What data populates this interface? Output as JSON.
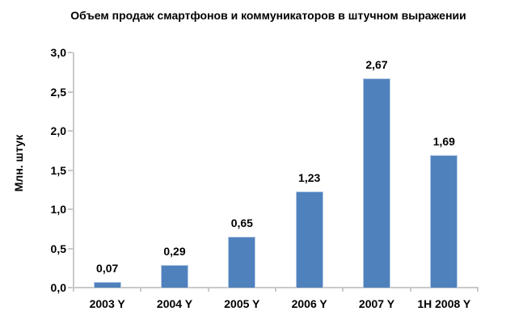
{
  "chart_data": {
    "type": "bar",
    "title": "Объем продаж смартфонов и коммуникаторов в штучном выражении",
    "xlabel": "",
    "ylabel": "Млн. штук",
    "categories": [
      "2003 Y",
      "2004 Y",
      "2005 Y",
      "2006 Y",
      "2007 Y",
      "1H 2008 Y"
    ],
    "values": [
      0.07,
      0.29,
      0.65,
      1.23,
      2.67,
      1.69
    ],
    "value_labels": [
      "0,07",
      "0,29",
      "0,65",
      "1,23",
      "2,67",
      "1,69"
    ],
    "ylim": [
      0,
      3.0
    ],
    "ytick_step": 0.5,
    "ytick_labels": [
      "0,0",
      "0,5",
      "1,0",
      "1,5",
      "2,0",
      "2,5",
      "3,0"
    ],
    "grid": false,
    "legend": false,
    "decimal_separator": ",",
    "bar_color": "#4F81BD",
    "bar_border_color": "#B3C9E4",
    "axis_color": "#C9C9C9",
    "text_color": "#000000"
  }
}
